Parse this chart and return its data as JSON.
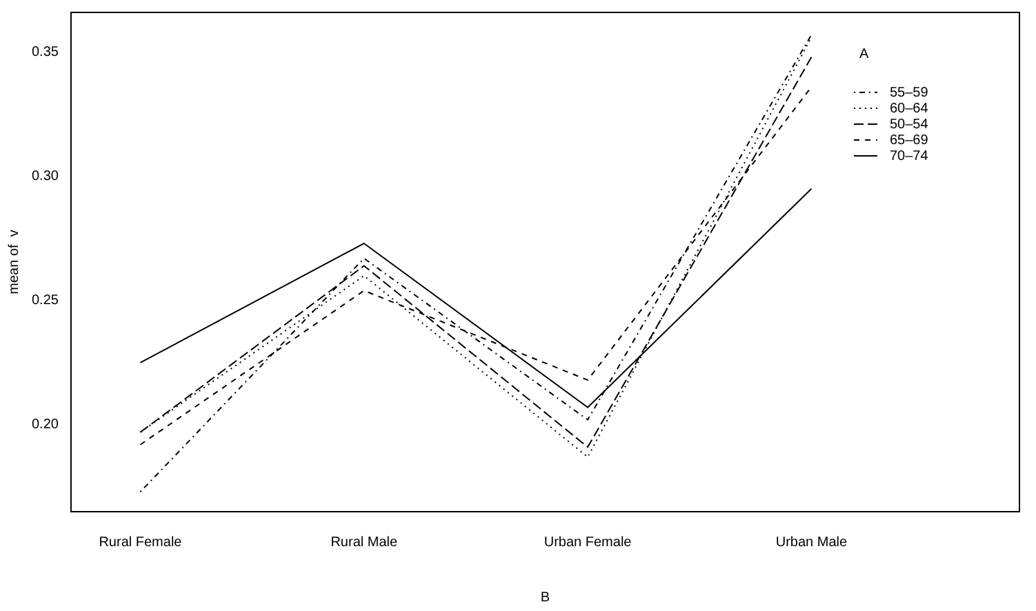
{
  "chart_data": {
    "type": "line",
    "xlabel": "B",
    "ylabel": "mean of  v",
    "legend_title": "A",
    "categories": [
      "Rural Female",
      "Rural Male",
      "Urban Female",
      "Urban Male"
    ],
    "series": [
      {
        "name": "55–59",
        "color": "#000000",
        "line_style": "dashdot",
        "values": [
          0.173,
          0.267,
          0.202,
          0.357
        ]
      },
      {
        "name": "60–64",
        "color": "#000000",
        "line_style": "dotted",
        "values": [
          0.197,
          0.26,
          0.187,
          0.356
        ]
      },
      {
        "name": "50–54",
        "color": "#000000",
        "line_style": "longdash",
        "values": [
          0.197,
          0.264,
          0.191,
          0.348
        ]
      },
      {
        "name": "65–69",
        "color": "#000000",
        "line_style": "dashed",
        "values": [
          0.192,
          0.254,
          0.218,
          0.336
        ]
      },
      {
        "name": "70–74",
        "color": "#000000",
        "line_style": "solid",
        "values": [
          0.225,
          0.273,
          0.207,
          0.295
        ]
      }
    ],
    "ylim": [
      0.165,
      0.366
    ],
    "yticks": [
      {
        "value": 0.2,
        "label": "0.20"
      },
      {
        "value": 0.25,
        "label": "0.25"
      },
      {
        "value": 0.3,
        "label": "0.30"
      },
      {
        "value": 0.35,
        "label": "0.35"
      }
    ],
    "grid": false,
    "legend": "top right",
    "marker": "none"
  }
}
